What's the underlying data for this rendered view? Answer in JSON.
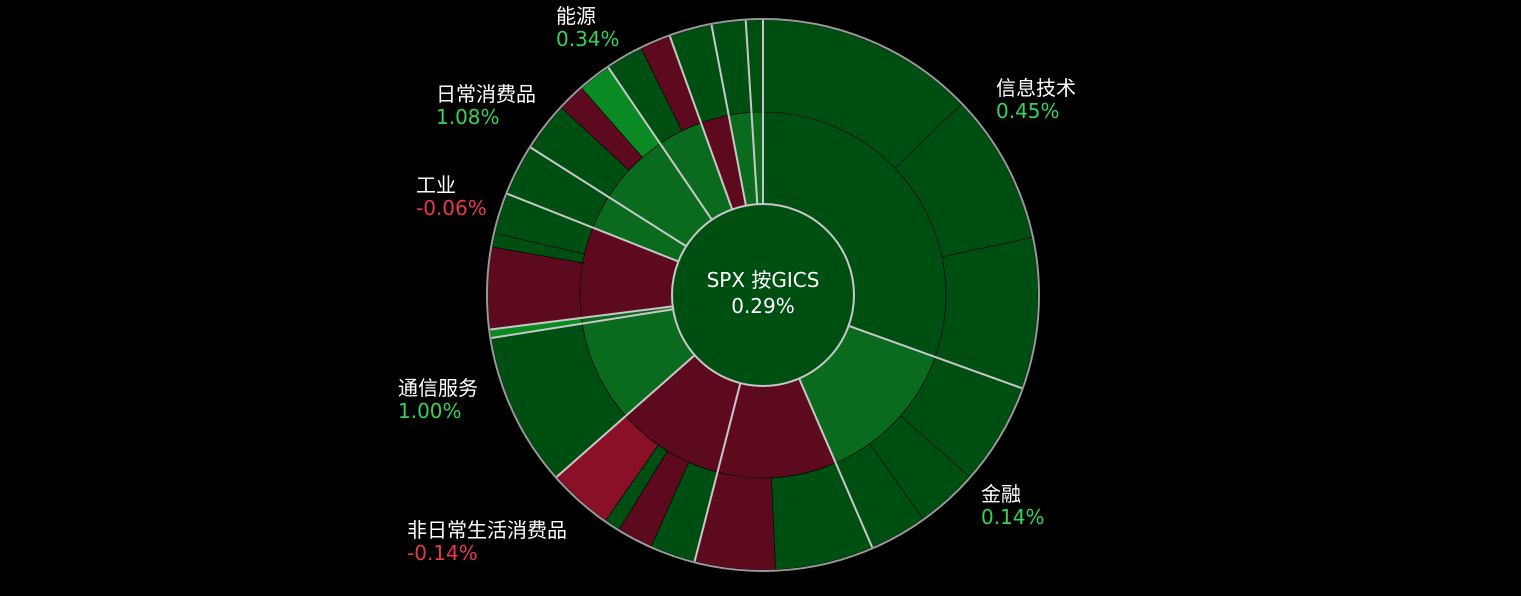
{
  "chart_data": {
    "type": "sunburst",
    "center": {
      "title": "SPX 按GICS",
      "value": "0.29%"
    },
    "colors": {
      "positive_text": "#37d25a",
      "negative_text": "#e8394c",
      "up": "#004f12",
      "up_mid": "#0a6a1e",
      "up_strong": "#0a8a22",
      "down": "#5e0a1e",
      "down_strong": "#8a1028",
      "separator": "#c8c8c8",
      "ring": "#9a9a9a"
    },
    "sectors": [
      {
        "name": "信息技术",
        "change": "0.45%",
        "sign": "up",
        "weight": 30.5
      },
      {
        "name": "金融",
        "change": "0.14%",
        "sign": "up",
        "weight": 13.0
      },
      {
        "name": "非日常生活消费品",
        "change": "-0.14%",
        "sign": "down",
        "weight": 10.5
      },
      {
        "name": "",
        "change": "",
        "sign": "down",
        "weight": 9.5
      },
      {
        "name": "通信服务",
        "change": "1.00%",
        "sign": "up",
        "weight": 9.0
      },
      {
        "name": "",
        "change": "",
        "sign": "up",
        "weight": 0.5
      },
      {
        "name": "工业",
        "change": "-0.06%",
        "sign": "down",
        "weight": 8.0
      },
      {
        "name": "",
        "change": "",
        "sign": "up",
        "weight": 3.0
      },
      {
        "name": "日常消费品",
        "change": "1.08%",
        "sign": "up",
        "weight": 6.5
      },
      {
        "name": "能源",
        "change": "0.34%",
        "sign": "up",
        "weight": 4.0
      },
      {
        "name": "",
        "change": "",
        "sign": "down",
        "weight": 2.5
      },
      {
        "name": "",
        "change": "",
        "sign": "up",
        "weight": 2.0
      },
      {
        "name": "",
        "change": "",
        "sign": "up",
        "weight": 1.0
      }
    ]
  }
}
